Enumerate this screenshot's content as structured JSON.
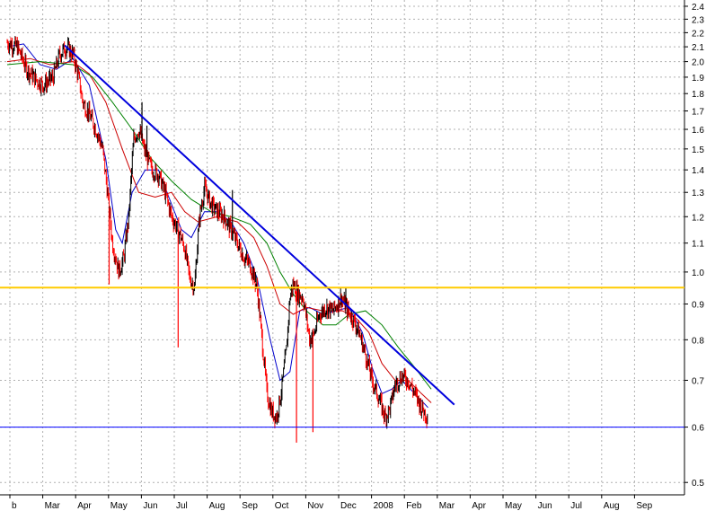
{
  "chart_data": {
    "type": "candlestick-line",
    "x_ticks": [
      "Feb",
      "Mar",
      "Apr",
      "May",
      "Jun",
      "Jul",
      "Aug",
      "Sep",
      "Oct",
      "Nov",
      "Dec",
      "2008",
      "Feb",
      "Mar",
      "Apr",
      "May",
      "Jun",
      "Jul",
      "Aug",
      "Sep"
    ],
    "x_tick_label_shown": [
      "b",
      "Mar",
      "Apr",
      "May",
      "Jun",
      "Jul",
      "Aug",
      "Sep",
      "Oct",
      "Nov",
      "Dec",
      "2008",
      "Feb",
      "Mar",
      "Apr",
      "May",
      "Jun",
      "Jul",
      "Aug",
      "Sep"
    ],
    "y_scale": "log",
    "ylim": [
      0.48,
      2.45
    ],
    "y_ticks": [
      0.5,
      0.6,
      0.7,
      0.8,
      0.9,
      1.0,
      1.1,
      1.2,
      1.3,
      1.4,
      1.5,
      1.6,
      1.7,
      1.8,
      1.9,
      2.0,
      2.1,
      2.2,
      2.3,
      2.4
    ],
    "y_tick_labels": [
      "0.5",
      "0.6",
      "0.7",
      "0.8",
      "0.9",
      "1.0",
      "1.1",
      "1.2",
      "1.3",
      "1.4",
      "1.5",
      "1.6",
      "1.7",
      "1.8",
      "1.9",
      "2.0",
      "2.1",
      "2.2",
      "2.3",
      "2.4"
    ],
    "grid": true,
    "price_anchors": [
      [
        0.0,
        2.13
      ],
      [
        0.3,
        2.1
      ],
      [
        0.6,
        1.95
      ],
      [
        0.9,
        1.88
      ],
      [
        1.1,
        1.85
      ],
      [
        1.4,
        1.9
      ],
      [
        1.6,
        2.05
      ],
      [
        1.8,
        2.1
      ],
      [
        2.0,
        2.05
      ],
      [
        2.15,
        1.92
      ],
      [
        2.3,
        1.75
      ],
      [
        2.5,
        1.68
      ],
      [
        2.7,
        1.6
      ],
      [
        2.9,
        1.5
      ],
      [
        3.05,
        1.3
      ],
      [
        3.2,
        1.1
      ],
      [
        3.4,
        1.0
      ],
      [
        3.55,
        1.05
      ],
      [
        3.7,
        1.2
      ],
      [
        3.85,
        1.55
      ],
      [
        4.0,
        1.6
      ],
      [
        4.2,
        1.48
      ],
      [
        4.4,
        1.4
      ],
      [
        4.6,
        1.38
      ],
      [
        4.8,
        1.3
      ],
      [
        5.0,
        1.2
      ],
      [
        5.2,
        1.15
      ],
      [
        5.4,
        1.08
      ],
      [
        5.55,
        0.98
      ],
      [
        5.7,
        0.95
      ],
      [
        5.85,
        1.2
      ],
      [
        6.0,
        1.32
      ],
      [
        6.2,
        1.25
      ],
      [
        6.4,
        1.22
      ],
      [
        6.6,
        1.2
      ],
      [
        6.8,
        1.15
      ],
      [
        7.0,
        1.1
      ],
      [
        7.2,
        1.05
      ],
      [
        7.4,
        1.02
      ],
      [
        7.6,
        0.95
      ],
      [
        7.75,
        0.8
      ],
      [
        7.9,
        0.67
      ],
      [
        8.05,
        0.63
      ],
      [
        8.2,
        0.62
      ],
      [
        8.35,
        0.68
      ],
      [
        8.5,
        0.78
      ],
      [
        8.6,
        0.92
      ],
      [
        8.7,
        0.96
      ],
      [
        8.85,
        0.93
      ],
      [
        9.0,
        0.92
      ],
      [
        9.1,
        0.86
      ],
      [
        9.2,
        0.8
      ],
      [
        9.35,
        0.82
      ],
      [
        9.5,
        0.87
      ],
      [
        9.7,
        0.89
      ],
      [
        9.9,
        0.88
      ],
      [
        10.05,
        0.9
      ],
      [
        10.15,
        0.92
      ],
      [
        10.3,
        0.89
      ],
      [
        10.5,
        0.86
      ],
      [
        10.7,
        0.82
      ],
      [
        10.9,
        0.76
      ],
      [
        11.1,
        0.7
      ],
      [
        11.3,
        0.66
      ],
      [
        11.5,
        0.62
      ],
      [
        11.65,
        0.64
      ],
      [
        11.8,
        0.69
      ],
      [
        12.0,
        0.71
      ],
      [
        12.2,
        0.7
      ],
      [
        12.4,
        0.67
      ],
      [
        12.6,
        0.64
      ],
      [
        12.8,
        0.62
      ]
    ],
    "wick_spikes": [
      [
        3.1,
        0.96
      ],
      [
        4.1,
        1.75
      ],
      [
        4.25,
        1.62
      ],
      [
        5.2,
        0.78
      ],
      [
        6.85,
        1.31
      ],
      [
        7.55,
        1.0
      ],
      [
        8.8,
        0.57
      ],
      [
        9.3,
        0.59
      ],
      [
        10.3,
        0.95
      ]
    ],
    "moving_averages": [
      {
        "color": "#0000cc",
        "points": [
          [
            0.0,
            2.1
          ],
          [
            0.5,
            2.12
          ],
          [
            1.0,
            1.98
          ],
          [
            1.5,
            1.95
          ],
          [
            2.0,
            2.02
          ],
          [
            2.5,
            1.85
          ],
          [
            3.0,
            1.45
          ],
          [
            3.3,
            1.15
          ],
          [
            3.5,
            1.1
          ],
          [
            3.8,
            1.3
          ],
          [
            4.2,
            1.4
          ],
          [
            4.6,
            1.4
          ],
          [
            5.0,
            1.25
          ],
          [
            5.3,
            1.15
          ],
          [
            5.6,
            1.12
          ],
          [
            6.0,
            1.22
          ],
          [
            6.4,
            1.22
          ],
          [
            6.8,
            1.18
          ],
          [
            7.2,
            1.1
          ],
          [
            7.6,
            0.98
          ],
          [
            8.0,
            0.8
          ],
          [
            8.3,
            0.7
          ],
          [
            8.6,
            0.72
          ],
          [
            8.9,
            0.88
          ],
          [
            9.2,
            0.89
          ],
          [
            9.6,
            0.87
          ],
          [
            10.0,
            0.88
          ],
          [
            10.4,
            0.89
          ],
          [
            10.8,
            0.82
          ],
          [
            11.1,
            0.73
          ],
          [
            11.4,
            0.67
          ],
          [
            11.7,
            0.68
          ],
          [
            12.0,
            0.7
          ],
          [
            12.4,
            0.67
          ],
          [
            12.8,
            0.64
          ]
        ]
      },
      {
        "color": "#cc0000",
        "points": [
          [
            0.0,
            2.0
          ],
          [
            0.7,
            2.02
          ],
          [
            1.3,
            1.98
          ],
          [
            2.0,
            2.0
          ],
          [
            2.5,
            1.92
          ],
          [
            3.0,
            1.75
          ],
          [
            3.5,
            1.5
          ],
          [
            4.0,
            1.3
          ],
          [
            4.5,
            1.28
          ],
          [
            5.0,
            1.3
          ],
          [
            5.4,
            1.22
          ],
          [
            5.8,
            1.18
          ],
          [
            6.4,
            1.2
          ],
          [
            7.0,
            1.18
          ],
          [
            7.5,
            1.12
          ],
          [
            7.9,
            1.02
          ],
          [
            8.3,
            0.9
          ],
          [
            8.7,
            0.87
          ],
          [
            9.1,
            0.89
          ],
          [
            9.6,
            0.88
          ],
          [
            10.2,
            0.88
          ],
          [
            10.6,
            0.86
          ],
          [
            11.0,
            0.82
          ],
          [
            11.4,
            0.74
          ],
          [
            11.8,
            0.7
          ],
          [
            12.2,
            0.7
          ],
          [
            12.6,
            0.67
          ],
          [
            12.9,
            0.65
          ]
        ]
      },
      {
        "color": "#008000",
        "points": [
          [
            0.0,
            1.98
          ],
          [
            1.0,
            2.0
          ],
          [
            2.0,
            1.98
          ],
          [
            2.6,
            1.9
          ],
          [
            3.2,
            1.75
          ],
          [
            3.8,
            1.6
          ],
          [
            4.4,
            1.45
          ],
          [
            5.0,
            1.35
          ],
          [
            5.6,
            1.27
          ],
          [
            6.2,
            1.22
          ],
          [
            6.8,
            1.2
          ],
          [
            7.4,
            1.17
          ],
          [
            7.9,
            1.1
          ],
          [
            8.3,
            1.0
          ],
          [
            8.7,
            0.93
          ],
          [
            9.1,
            0.88
          ],
          [
            9.6,
            0.84
          ],
          [
            10.0,
            0.84
          ],
          [
            10.4,
            0.87
          ],
          [
            10.9,
            0.88
          ],
          [
            11.4,
            0.84
          ],
          [
            11.9,
            0.78
          ],
          [
            12.4,
            0.73
          ],
          [
            12.9,
            0.68
          ]
        ]
      }
    ],
    "overlay_lines": [
      {
        "kind": "trendline",
        "color": "#0000dd",
        "from": [
          1.75,
          2.11
        ],
        "to": [
          13.6,
          0.646
        ]
      },
      {
        "kind": "horizontal",
        "color": "#ffcc00",
        "y": 0.95
      },
      {
        "kind": "horizontal",
        "color": "#0000ff",
        "y": 0.6
      }
    ]
  }
}
